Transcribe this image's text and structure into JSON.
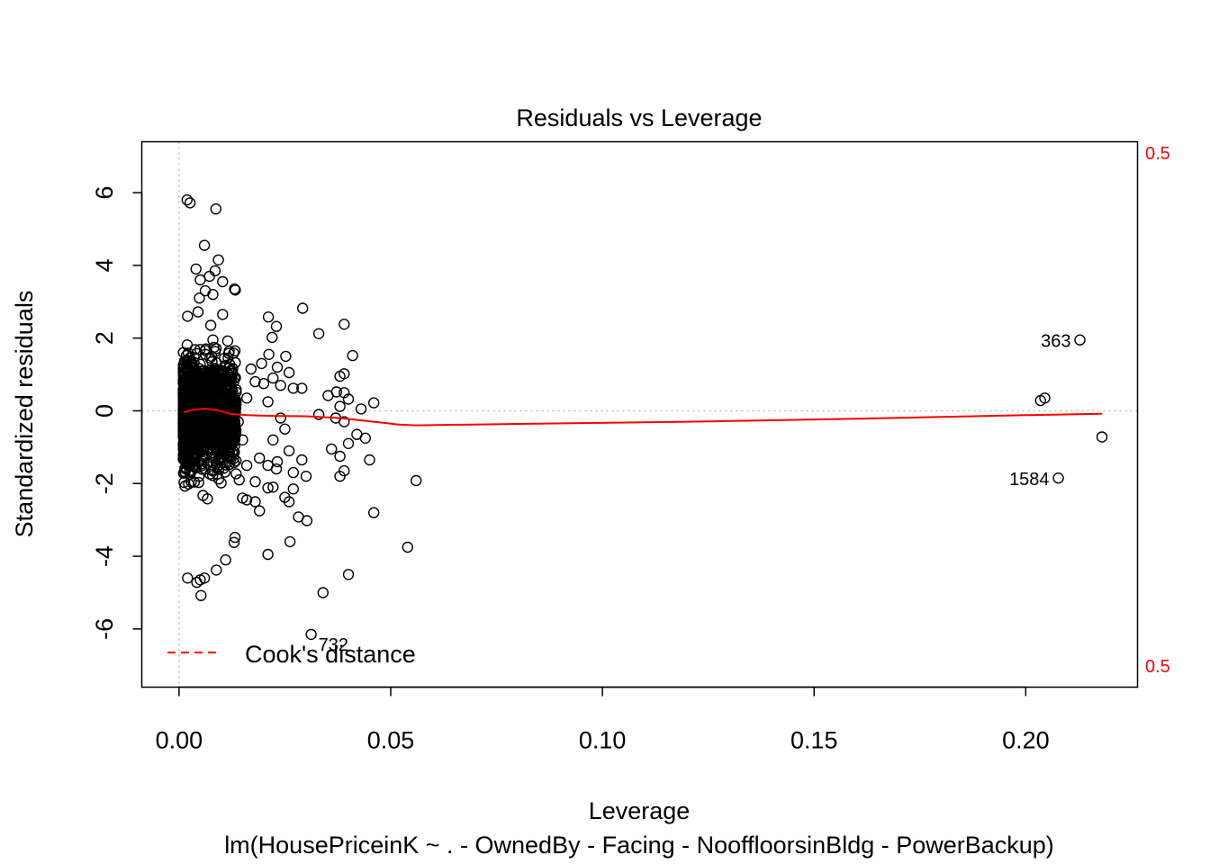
{
  "chart_data": {
    "type": "scatter",
    "title": "Residuals vs Leverage",
    "xlabel": "Leverage",
    "ylabel": "Standardized residuals",
    "subtitle": "lm(HousePriceinK ~ . - OwnedBy - Facing - NooffloorsinBldg - PowerBackup)",
    "xlim": [
      -0.0088,
      0.2264
    ],
    "ylim": [
      -7.6,
      7.4
    ],
    "x_ticks": [
      0.0,
      0.05,
      0.1,
      0.15,
      0.2
    ],
    "x_tick_labels": [
      "0.00",
      "0.05",
      "0.10",
      "0.15",
      "0.20"
    ],
    "y_ticks": [
      -6,
      -4,
      -2,
      0,
      2,
      4,
      6
    ],
    "y_tick_labels": [
      "-6",
      "-4",
      "-2",
      "0",
      "2",
      "4",
      "6"
    ],
    "grid": false,
    "reference_lines": {
      "horizontal_y": 0,
      "vertical_x": 0
    },
    "legend": {
      "position": "bottom-left",
      "label": "Cook's distance"
    },
    "cooks_contour_label": "0.5",
    "cooks_contour_right_labels": [
      "0.5",
      "0.5"
    ],
    "colors": {
      "points": "#000000",
      "smoother": "#ff0000",
      "cooks": "#ff0000",
      "reference": "#bebebe"
    },
    "labeled_points": [
      {
        "id": "363",
        "x": 0.2128,
        "y": 1.95
      },
      {
        "id": "1584",
        "x": 0.2077,
        "y": -1.85
      },
      {
        "id": "732",
        "x": 0.0312,
        "y": -6.15
      }
    ],
    "points": [
      [
        0.0019,
        5.8
      ],
      [
        0.0026,
        5.72
      ],
      [
        0.0087,
        5.55
      ],
      [
        0.006,
        4.55
      ],
      [
        0.0093,
        4.15
      ],
      [
        0.004,
        3.9
      ],
      [
        0.0085,
        3.85
      ],
      [
        0.0072,
        3.7
      ],
      [
        0.005,
        3.6
      ],
      [
        0.0103,
        3.55
      ],
      [
        0.0131,
        3.35
      ],
      [
        0.0133,
        3.32
      ],
      [
        0.0062,
        3.3
      ],
      [
        0.008,
        3.2
      ],
      [
        0.0048,
        3.1
      ],
      [
        0.0292,
        2.82
      ],
      [
        0.0045,
        2.72
      ],
      [
        0.0103,
        2.65
      ],
      [
        0.002,
        2.6
      ],
      [
        0.0211,
        2.58
      ],
      [
        0.039,
        2.38
      ],
      [
        0.023,
        2.32
      ],
      [
        0.0075,
        2.35
      ],
      [
        0.033,
        2.12
      ],
      [
        0.022,
        2.02
      ],
      [
        0.008,
        1.95
      ],
      [
        0.0132,
        1.65
      ],
      [
        0.041,
        1.52
      ],
      [
        0.0212,
        1.55
      ],
      [
        0.0252,
        1.5
      ],
      [
        0.0195,
        1.3
      ],
      [
        0.017,
        1.15
      ],
      [
        0.0232,
        1.2
      ],
      [
        0.026,
        1.05
      ],
      [
        0.039,
        1.02
      ],
      [
        0.038,
        0.95
      ],
      [
        0.0222,
        0.9
      ],
      [
        0.018,
        0.8
      ],
      [
        0.02,
        0.75
      ],
      [
        0.024,
        0.7
      ],
      [
        0.027,
        0.62
      ],
      [
        0.0372,
        0.52
      ],
      [
        0.039,
        0.5
      ],
      [
        0.0352,
        0.42
      ],
      [
        0.04,
        0.32
      ],
      [
        0.046,
        0.22
      ],
      [
        0.038,
        0.12
      ],
      [
        0.043,
        0.05
      ],
      [
        0.016,
        0.35
      ],
      [
        0.021,
        0.25
      ],
      [
        0.029,
        0.62
      ],
      [
        0.033,
        -0.1
      ],
      [
        0.037,
        -0.2
      ],
      [
        0.039,
        -0.3
      ],
      [
        0.042,
        -0.65
      ],
      [
        0.044,
        -0.75
      ],
      [
        0.04,
        -0.9
      ],
      [
        0.036,
        -1.05
      ],
      [
        0.045,
        -1.35
      ],
      [
        0.038,
        -1.25
      ],
      [
        0.039,
        -1.65
      ],
      [
        0.038,
        -1.8
      ],
      [
        0.056,
        -1.92
      ],
      [
        0.046,
        -2.8
      ],
      [
        0.054,
        -3.75
      ],
      [
        0.04,
        -4.5
      ],
      [
        0.034,
        -5.0
      ],
      [
        0.0312,
        -6.15
      ],
      [
        0.024,
        -0.2
      ],
      [
        0.025,
        -0.5
      ],
      [
        0.0222,
        -0.8
      ],
      [
        0.026,
        -1.1
      ],
      [
        0.029,
        -1.35
      ],
      [
        0.0232,
        -1.4
      ],
      [
        0.019,
        -1.3
      ],
      [
        0.021,
        -1.5
      ],
      [
        0.023,
        -1.6
      ],
      [
        0.027,
        -1.7
      ],
      [
        0.03,
        -1.8
      ],
      [
        0.018,
        -1.95
      ],
      [
        0.0222,
        -2.1
      ],
      [
        0.021,
        -2.12
      ],
      [
        0.027,
        -2.15
      ],
      [
        0.018,
        -2.5
      ],
      [
        0.025,
        -2.38
      ],
      [
        0.019,
        -2.75
      ],
      [
        0.026,
        -2.5
      ],
      [
        0.0282,
        -2.92
      ],
      [
        0.0302,
        -3.02
      ],
      [
        0.0262,
        -3.6
      ],
      [
        0.021,
        -3.95
      ],
      [
        0.016,
        -2.45
      ],
      [
        0.0132,
        -3.48
      ],
      [
        0.013,
        -3.62
      ],
      [
        0.011,
        -4.1
      ],
      [
        0.0088,
        -4.38
      ],
      [
        0.005,
        -4.65
      ],
      [
        0.006,
        -4.6
      ],
      [
        0.0052,
        -5.08
      ],
      [
        0.0042,
        -4.72
      ],
      [
        0.002,
        -4.6
      ],
      [
        0.014,
        -0.3
      ],
      [
        0.015,
        -0.8
      ],
      [
        0.016,
        -1.5
      ],
      [
        0.0142,
        -1.9
      ],
      [
        0.015,
        -2.4
      ],
      [
        0.2128,
        1.95
      ],
      [
        0.2045,
        0.35
      ],
      [
        0.2035,
        0.28
      ],
      [
        0.2077,
        -1.85
      ],
      [
        0.218,
        -0.72
      ]
    ],
    "smoother": {
      "x": [
        0.0012,
        0.003,
        0.006,
        0.009,
        0.012,
        0.016,
        0.022,
        0.03,
        0.038,
        0.046,
        0.052,
        0.056,
        0.08,
        0.12,
        0.16,
        0.2,
        0.218
      ],
      "y": [
        -0.04,
        0.02,
        0.06,
        0.02,
        -0.08,
        -0.12,
        -0.14,
        -0.15,
        -0.2,
        -0.3,
        -0.38,
        -0.4,
        -0.36,
        -0.3,
        -0.22,
        -0.12,
        -0.08
      ]
    }
  }
}
